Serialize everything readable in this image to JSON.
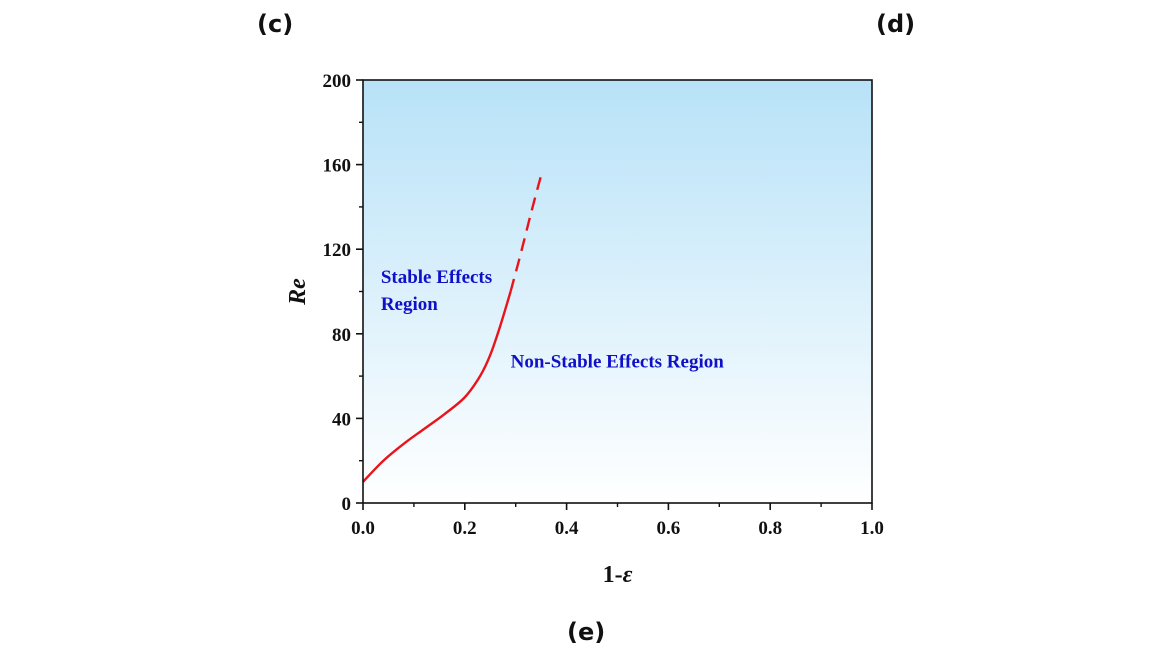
{
  "panels": {
    "c": "(c)",
    "d": "(d)",
    "e": "(e)"
  },
  "chart_data": {
    "type": "line",
    "xlabel": "1-",
    "xlabel_symbol": "ε",
    "ylabel": "Re",
    "xlim": [
      0,
      1
    ],
    "ylim": [
      0,
      200
    ],
    "x_ticks": [
      "0.0",
      "0.2",
      "0.4",
      "0.6",
      "0.8",
      "1.0"
    ],
    "y_ticks": [
      "0",
      "40",
      "80",
      "120",
      "160",
      "200"
    ],
    "x_tick_values": [
      0,
      0.2,
      0.4,
      0.6,
      0.8,
      1.0
    ],
    "y_tick_values": [
      0,
      40,
      80,
      120,
      160,
      200
    ],
    "grid": false,
    "background_gradient": {
      "top": "#b8e2f8",
      "bottom": "#ffffff"
    },
    "series": [
      {
        "style": "solid",
        "color": "#e8141a",
        "x": [
          0.0,
          0.04,
          0.08,
          0.12,
          0.16,
          0.2,
          0.23,
          0.25,
          0.27,
          0.29
        ],
        "y": [
          10,
          20,
          28,
          35,
          42,
          50,
          60,
          70,
          84,
          100
        ]
      },
      {
        "style": "dashed",
        "color": "#e8141a",
        "x": [
          0.29,
          0.31,
          0.33,
          0.35
        ],
        "y": [
          100,
          118,
          137,
          155
        ]
      }
    ],
    "annotations": [
      {
        "lines": [
          "Stable Effects",
          "Region"
        ],
        "x": 0.035,
        "y": 104
      },
      {
        "lines": [
          "Non-Stable Effects Region"
        ],
        "x": 0.29,
        "y": 64
      }
    ]
  }
}
